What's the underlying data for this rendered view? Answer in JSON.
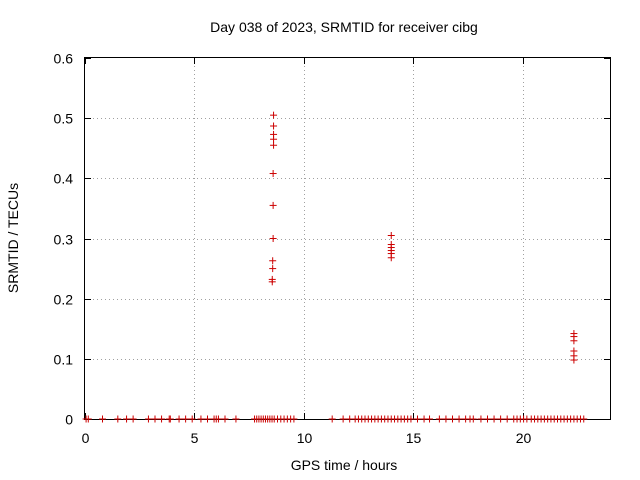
{
  "chart_data": {
    "type": "scatter",
    "title": "Day 038 of 2023, SRMTID for receiver cibg",
    "xlabel": "GPS time / hours",
    "ylabel": "SRMTID / TECUs",
    "xlim": [
      0,
      24
    ],
    "ylim": [
      0,
      0.6
    ],
    "xticks": [
      0,
      5,
      10,
      15,
      20
    ],
    "yticks": [
      0,
      0.1,
      0.2,
      0.3,
      0.4,
      0.5,
      0.6
    ],
    "grid": true,
    "marker": "+",
    "color": "#cc0000",
    "series": [
      {
        "name": "SRMTID",
        "points": [
          [
            0.05,
            0
          ],
          [
            0.15,
            0
          ],
          [
            0.8,
            0
          ],
          [
            1.5,
            0
          ],
          [
            1.9,
            0
          ],
          [
            2.2,
            0
          ],
          [
            2.9,
            0
          ],
          [
            3.2,
            0
          ],
          [
            3.5,
            0
          ],
          [
            3.85,
            0
          ],
          [
            3.9,
            0
          ],
          [
            4.3,
            0
          ],
          [
            4.6,
            0
          ],
          [
            4.9,
            0
          ],
          [
            5.3,
            0
          ],
          [
            5.6,
            0
          ],
          [
            5.9,
            0
          ],
          [
            6.0,
            0
          ],
          [
            6.1,
            0
          ],
          [
            6.4,
            0
          ],
          [
            6.9,
            0
          ],
          [
            7.75,
            0
          ],
          [
            7.85,
            0
          ],
          [
            7.95,
            0
          ],
          [
            8.05,
            0
          ],
          [
            8.15,
            0
          ],
          [
            8.25,
            0
          ],
          [
            8.35,
            0
          ],
          [
            8.45,
            0
          ],
          [
            8.55,
            0
          ],
          [
            8.65,
            0
          ],
          [
            8.8,
            0
          ],
          [
            8.95,
            0
          ],
          [
            9.1,
            0
          ],
          [
            9.25,
            0
          ],
          [
            9.4,
            0
          ],
          [
            9.55,
            0
          ],
          [
            11.3,
            0
          ],
          [
            11.8,
            0
          ],
          [
            12.1,
            0
          ],
          [
            12.35,
            0
          ],
          [
            12.5,
            0
          ],
          [
            12.65,
            0
          ],
          [
            12.8,
            0
          ],
          [
            12.95,
            0
          ],
          [
            13.1,
            0
          ],
          [
            13.25,
            0
          ],
          [
            13.4,
            0
          ],
          [
            13.55,
            0
          ],
          [
            13.7,
            0
          ],
          [
            13.85,
            0
          ],
          [
            14.0,
            0
          ],
          [
            14.15,
            0
          ],
          [
            14.3,
            0
          ],
          [
            14.45,
            0
          ],
          [
            14.6,
            0
          ],
          [
            14.75,
            0
          ],
          [
            14.9,
            0
          ],
          [
            15.2,
            0
          ],
          [
            15.5,
            0
          ],
          [
            15.75,
            0
          ],
          [
            16.2,
            0
          ],
          [
            16.5,
            0
          ],
          [
            16.8,
            0
          ],
          [
            17.1,
            0
          ],
          [
            17.4,
            0
          ],
          [
            17.6,
            0
          ],
          [
            17.75,
            0
          ],
          [
            18.1,
            0
          ],
          [
            18.4,
            0
          ],
          [
            18.7,
            0
          ],
          [
            19.0,
            0
          ],
          [
            19.3,
            0
          ],
          [
            19.6,
            0
          ],
          [
            19.75,
            0
          ],
          [
            19.9,
            0
          ],
          [
            20.05,
            0
          ],
          [
            20.2,
            0
          ],
          [
            20.4,
            0
          ],
          [
            20.55,
            0
          ],
          [
            20.7,
            0
          ],
          [
            20.85,
            0
          ],
          [
            21.0,
            0
          ],
          [
            21.15,
            0
          ],
          [
            21.3,
            0
          ],
          [
            21.45,
            0
          ],
          [
            21.6,
            0
          ],
          [
            21.75,
            0
          ],
          [
            21.9,
            0
          ],
          [
            22.05,
            0
          ],
          [
            22.2,
            0
          ],
          [
            22.35,
            0
          ],
          [
            22.5,
            0
          ],
          [
            22.65,
            0
          ],
          [
            22.8,
            0
          ],
          [
            8.62,
            0.505
          ],
          [
            8.62,
            0.487
          ],
          [
            8.62,
            0.473
          ],
          [
            8.62,
            0.465
          ],
          [
            8.62,
            0.455
          ],
          [
            8.6,
            0.408
          ],
          [
            8.6,
            0.355
          ],
          [
            8.6,
            0.3
          ],
          [
            8.58,
            0.263
          ],
          [
            8.58,
            0.25
          ],
          [
            8.56,
            0.232
          ],
          [
            8.56,
            0.228
          ],
          [
            14.0,
            0.305
          ],
          [
            14.0,
            0.29
          ],
          [
            14.0,
            0.285
          ],
          [
            14.0,
            0.28
          ],
          [
            14.0,
            0.275
          ],
          [
            14.0,
            0.268
          ],
          [
            22.35,
            0.142
          ],
          [
            22.35,
            0.137
          ],
          [
            22.35,
            0.13
          ],
          [
            22.35,
            0.113
          ],
          [
            22.35,
            0.105
          ],
          [
            22.35,
            0.098
          ]
        ]
      }
    ]
  }
}
